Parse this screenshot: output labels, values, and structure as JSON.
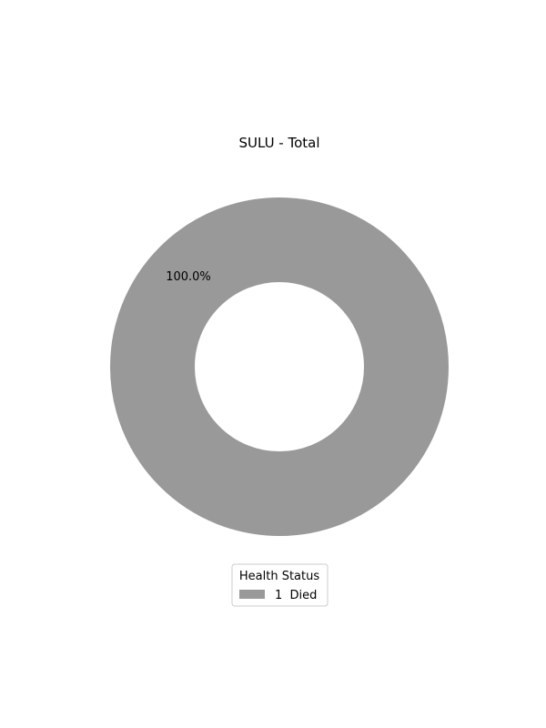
{
  "chart_data": {
    "type": "pie",
    "title": "SULU - Total",
    "donut": true,
    "slices": [
      {
        "label": "1  Died",
        "value": 1,
        "percent_label": "100.0%",
        "color": "#999999"
      }
    ],
    "legend": {
      "title": "Health Status",
      "placement": "bottom-center"
    }
  }
}
